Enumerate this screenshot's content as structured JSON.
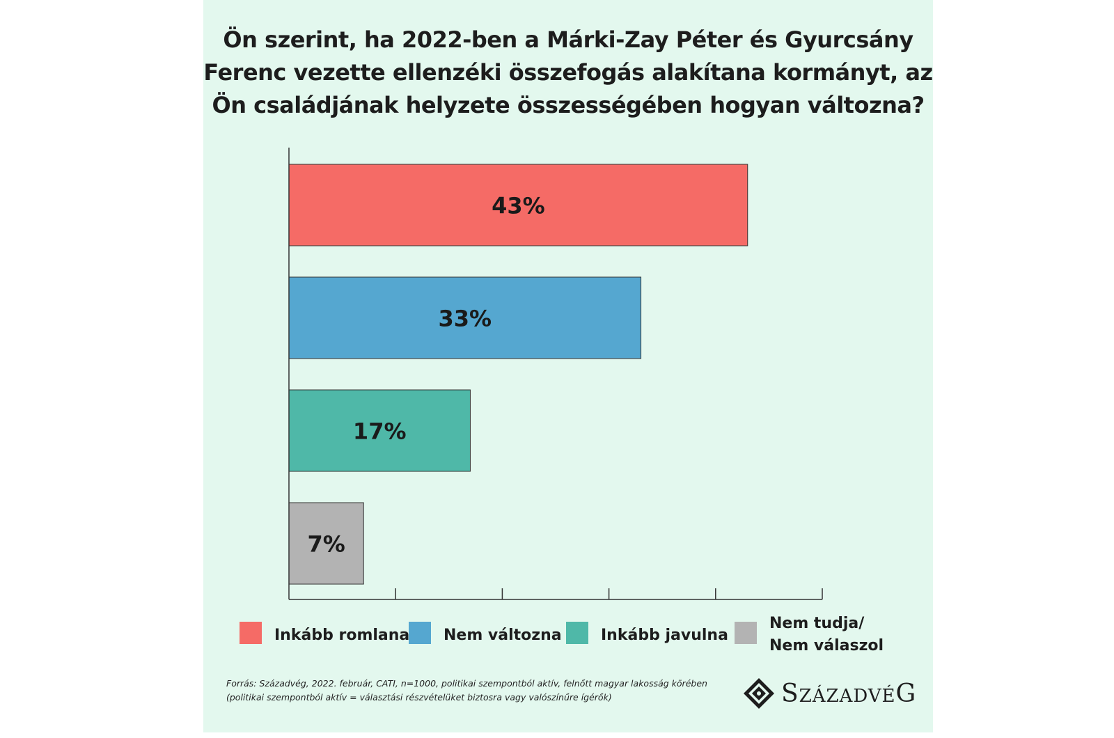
{
  "chart_data": {
    "type": "bar",
    "orientation": "horizontal",
    "title_lines": [
      "Ön szerint, ha 2022-ben a Márki-Zay Péter és Gyurcsány",
      "Ferenc vezette ellenzéki összefogás alakítana kormányt, az",
      "Ön családjának helyzete összességében hogyan változna?"
    ],
    "categories": [
      "Inkább romlana",
      "Nem változna",
      "Inkább javulna",
      "Nem tudja/ Nem válaszol"
    ],
    "values": [
      43,
      33,
      17,
      7
    ],
    "value_labels": [
      "43%",
      "33%",
      "17%",
      "7%"
    ],
    "colors": [
      "#f56b66",
      "#55a7d0",
      "#4fb8a8",
      "#b3b3b3"
    ],
    "xlim": [
      0,
      50
    ],
    "x_ticks": [
      10,
      20,
      30,
      40,
      50
    ],
    "grid": false,
    "legend_placement": "bottom"
  },
  "legend": [
    {
      "lines": [
        "Inkább romlana"
      ],
      "color": "#f56b66"
    },
    {
      "lines": [
        "Nem változna"
      ],
      "color": "#55a7d0"
    },
    {
      "lines": [
        "Inkább javulna"
      ],
      "color": "#4fb8a8"
    },
    {
      "lines": [
        "Nem tudja/",
        "Nem válaszol"
      ],
      "color": "#b3b3b3"
    }
  ],
  "source_lines": [
    "Forrás: Századvég, 2022. február, CATI, n=1000, politikai szempontból aktív, felnőtt magyar lakosság körében",
    "(politikai szempontból aktív = választási részvételüket biztosra vagy valószínűre ígérők)"
  ],
  "logo": {
    "text": "SzázadvéG",
    "icon": "diamond-emblem-icon"
  }
}
